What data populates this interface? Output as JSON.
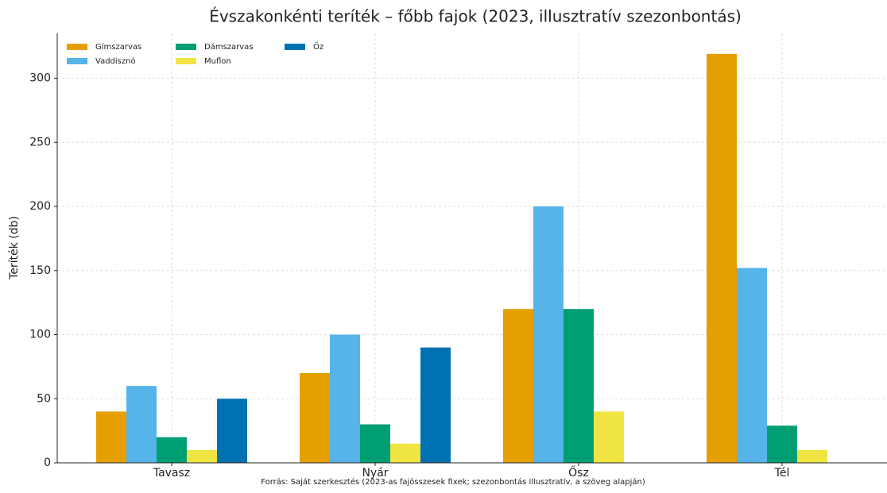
{
  "chart_data": {
    "type": "bar",
    "title": "Évszakonkénti teríték – főbb fajok (2023, illusztratív szezonbontás)",
    "ylabel": "Teríték (db)",
    "note": "Forrás: Saját szerkesztés (2023-as fajösszesek fixek; szezonbontás illusztratív, a szöveg alapján)",
    "categories": [
      "Tavasz",
      "Nyár",
      "Ősz",
      "Tél"
    ],
    "series": [
      {
        "name": "Gímszarvas",
        "color": "#E69F00",
        "values": [
          40,
          70,
          120,
          319
        ]
      },
      {
        "name": "Vaddisznó",
        "color": "#56B4E9",
        "values": [
          60,
          100,
          200,
          152
        ]
      },
      {
        "name": "Dámszarvas",
        "color": "#009E73",
        "values": [
          20,
          30,
          120,
          29
        ]
      },
      {
        "name": "Muflon",
        "color": "#F0E442",
        "values": [
          10,
          15,
          40,
          10
        ]
      },
      {
        "name": "Őz",
        "color": "#0072B2",
        "values": [
          50,
          90,
          0,
          0
        ]
      }
    ],
    "ylim": [
      0,
      335
    ],
    "yticks": [
      0,
      50,
      100,
      150,
      200,
      250,
      300
    ],
    "grid": true,
    "legend": "upper left"
  }
}
